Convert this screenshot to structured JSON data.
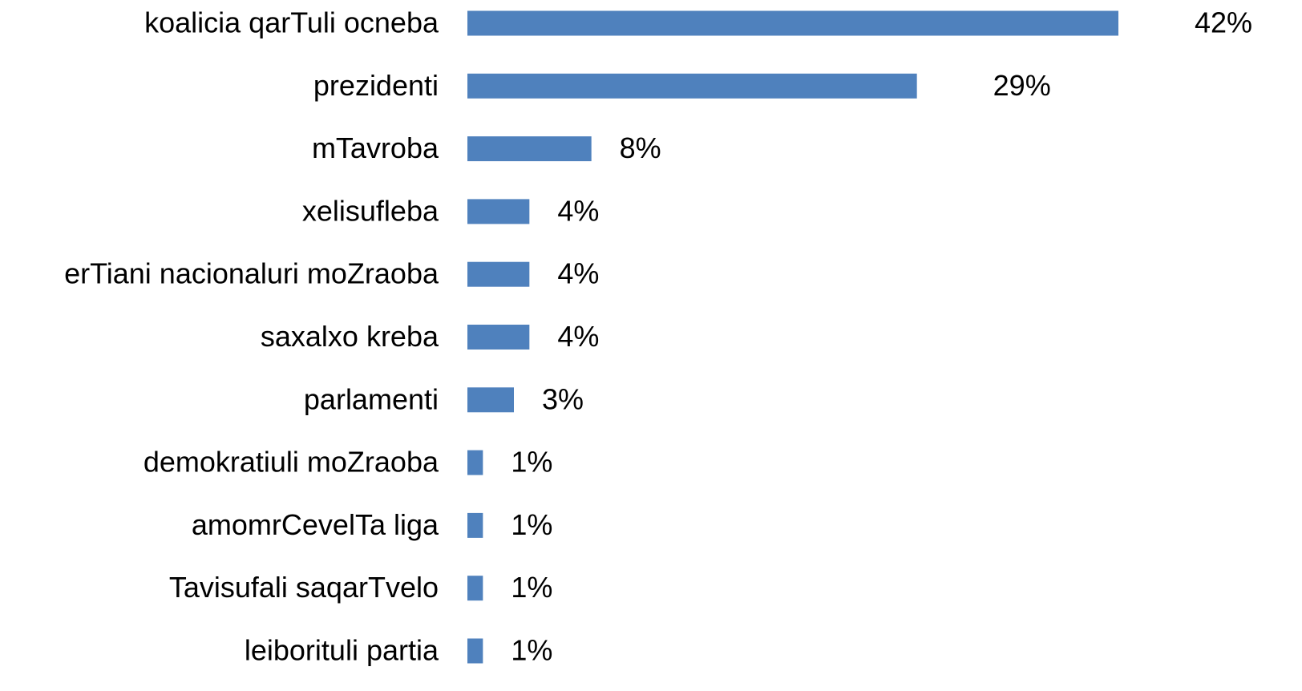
{
  "chart_data": {
    "type": "hbar",
    "categories": [
      "koalicia qarTuli ocneba",
      "prezidenti",
      "mTavroba",
      "xelisufleba",
      "erTiani nacionaluri moZraoba",
      "saxalxo kreba",
      "parlamenti",
      "demokratiuli moZraoba",
      "amomrCevelTa liga",
      "Tavisufali saqarTvelo",
      "leiborituli partia"
    ],
    "values": [
      42,
      29,
      8,
      4,
      4,
      4,
      3,
      1,
      1,
      1,
      1
    ],
    "value_labels": [
      "42%",
      "29%",
      "8%",
      "4%",
      "4%",
      "4%",
      "3%",
      "1%",
      "1%",
      "1%",
      "1%"
    ],
    "color": "#4f81bd"
  }
}
